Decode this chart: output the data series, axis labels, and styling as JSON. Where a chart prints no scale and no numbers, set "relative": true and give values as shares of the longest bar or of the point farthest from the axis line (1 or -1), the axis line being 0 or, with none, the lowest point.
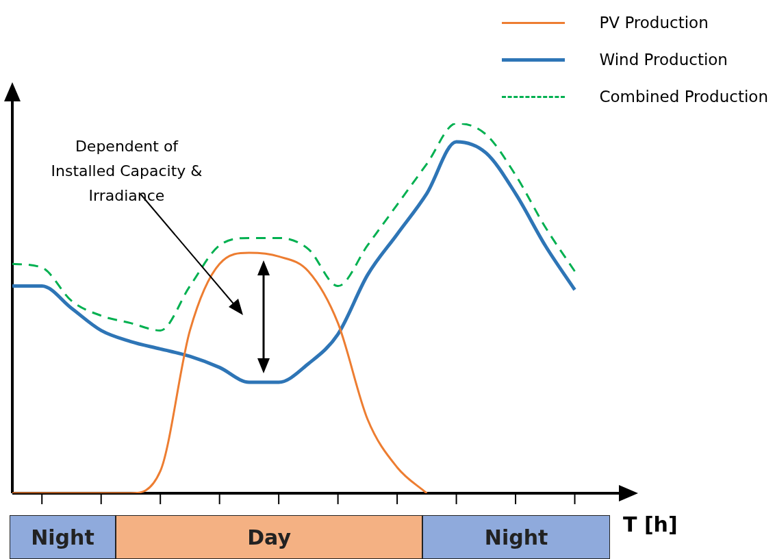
{
  "chart_data": {
    "type": "line",
    "relative": true,
    "xlabel": "T [h]",
    "legend": "top right",
    "marker": "none",
    "tick_labels": false,
    "categories": [
      null,
      null,
      null,
      null,
      null,
      null,
      null,
      null,
      null,
      null,
      null,
      null,
      null,
      null,
      null,
      null,
      null,
      null,
      null,
      null,
      null,
      null
    ],
    "series": [
      {
        "name": "PV Production",
        "color": "#ed7d31",
        "line_style": "solid",
        "values": [
          0,
          0,
          0,
          0,
          0,
          0.06,
          0.44,
          0.62,
          0.65,
          0.64,
          0.6,
          0.46,
          0.2,
          0.07,
          0,
          null,
          null,
          null,
          null,
          null,
          null,
          null
        ]
      },
      {
        "name": "Wind Production",
        "color": "#2e75b6",
        "line_style": "solid",
        "values": [
          0.56,
          0.56,
          0.5,
          0.44,
          0.41,
          0.39,
          0.37,
          0.34,
          0.3,
          0.3,
          0.35,
          0.43,
          0.59,
          0.7,
          0.81,
          0.95,
          0.92,
          0.81,
          0.67,
          0.55,
          null,
          null
        ]
      },
      {
        "name": "Combined Production",
        "color": "#00b050",
        "line_style": "dashed",
        "values": [
          0.62,
          0.61,
          0.52,
          0.48,
          0.46,
          0.44,
          0.56,
          0.67,
          0.69,
          0.69,
          0.66,
          0.56,
          0.67,
          0.78,
          0.89,
          1,
          0.97,
          0.86,
          0.72,
          0.6,
          null,
          null
        ]
      }
    ],
    "annotations": [
      "Dependent of Installed Capacity & Irradiance",
      "Night",
      "Day",
      "Night"
    ]
  }
}
